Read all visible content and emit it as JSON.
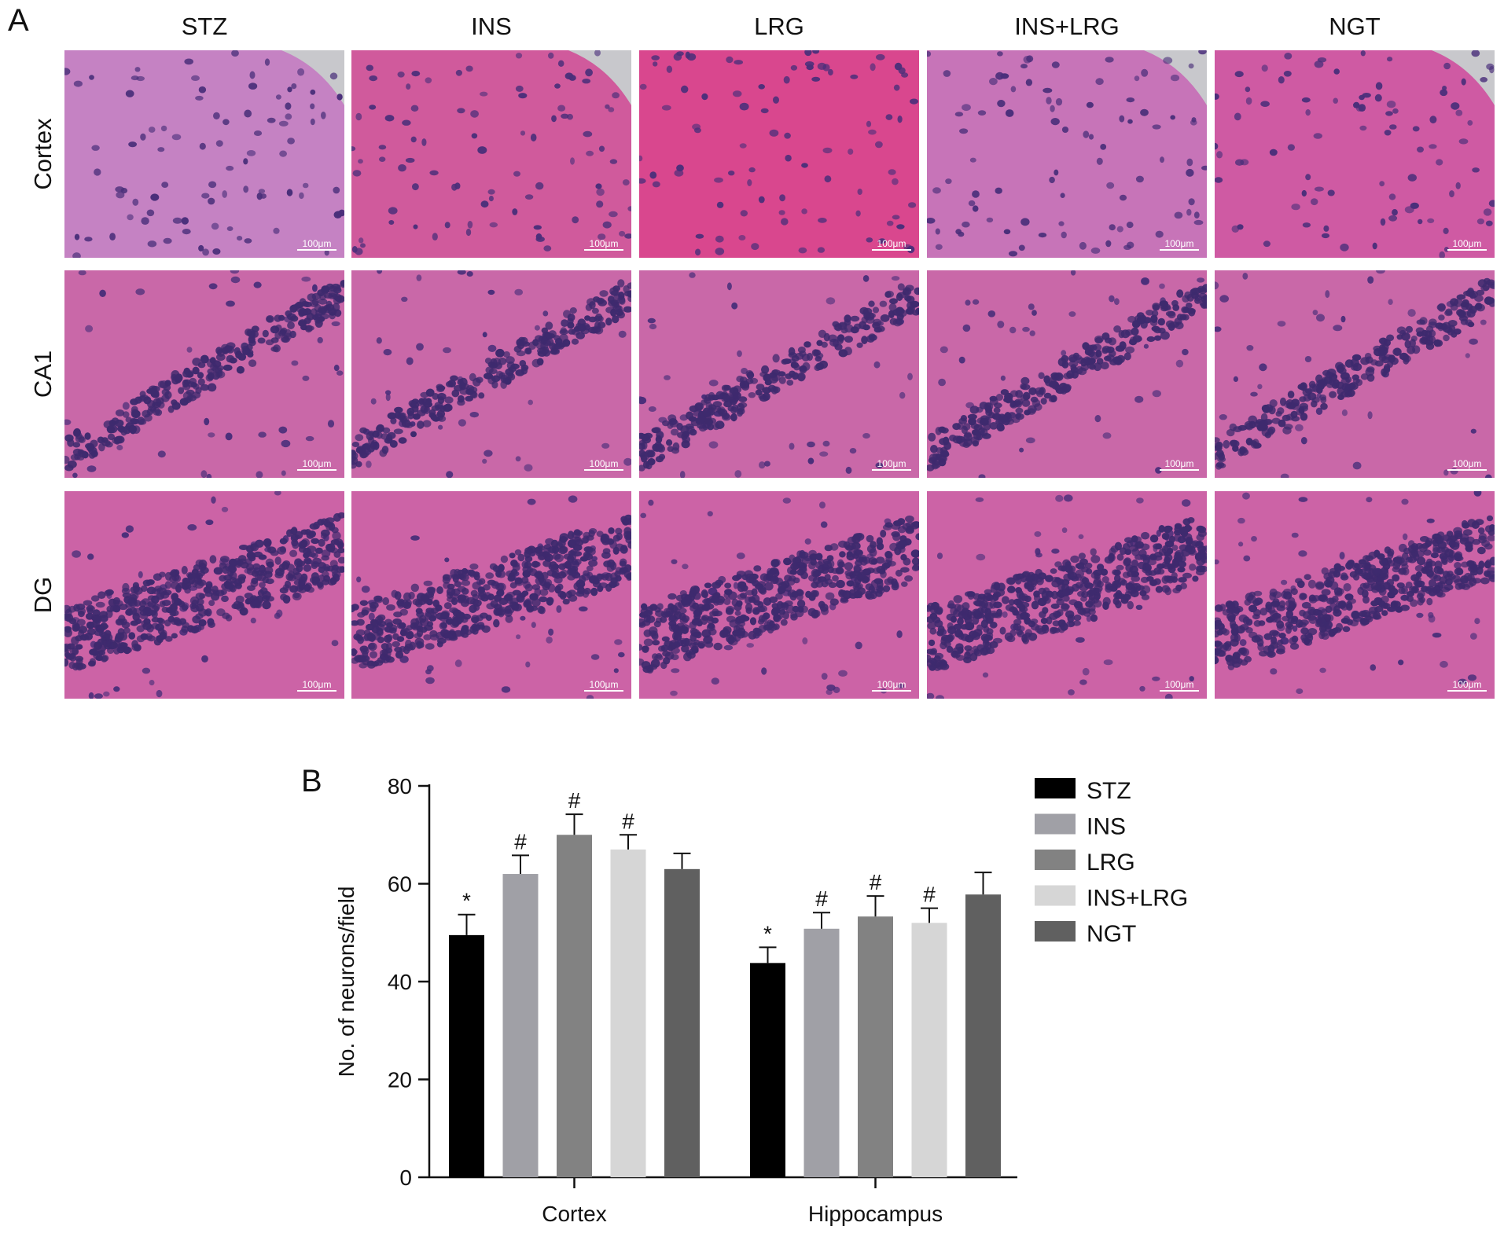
{
  "panel_a": {
    "letter": "A",
    "columns": [
      "STZ",
      "INS",
      "LRG",
      "INS+LRG",
      "NGT"
    ],
    "rows": [
      "Cortex",
      "CA1",
      "DG"
    ],
    "scale_bar_label": "100μm"
  },
  "panel_b": {
    "letter": "B"
  },
  "colors": {
    "STZ": "#000000",
    "INS": "#a0a0a6",
    "LRG": "#828282",
    "INS+LRG": "#d6d6d6",
    "NGT": "#606060",
    "he_background": "#d25a9e",
    "nuclei": "#3a2a6a"
  },
  "chart_data": {
    "type": "bar",
    "categories": [
      "Cortex",
      "Hippocampus"
    ],
    "series": [
      {
        "name": "STZ",
        "values": [
          49.5,
          43.8
        ],
        "errors": [
          4.2,
          3.2
        ],
        "marks": [
          "*",
          "*"
        ]
      },
      {
        "name": "INS",
        "values": [
          62,
          50.8
        ],
        "errors": [
          3.8,
          3.3
        ],
        "marks": [
          "#",
          "#"
        ]
      },
      {
        "name": "LRG",
        "values": [
          70,
          53.3
        ],
        "errors": [
          4.2,
          4.2
        ],
        "marks": [
          "#",
          "#"
        ]
      },
      {
        "name": "INS+LRG",
        "values": [
          67,
          52
        ],
        "errors": [
          3,
          3
        ],
        "marks": [
          "#",
          "#"
        ]
      },
      {
        "name": "NGT",
        "values": [
          63,
          57.8
        ],
        "errors": [
          3.2,
          4.5
        ],
        "marks": [
          "",
          ""
        ]
      }
    ],
    "ylabel": "No. of neurons/field",
    "xlabel": "",
    "ylim": [
      0,
      80
    ],
    "yticks": [
      0,
      20,
      40,
      60,
      80
    ],
    "legend_position": "right",
    "grid": false
  }
}
